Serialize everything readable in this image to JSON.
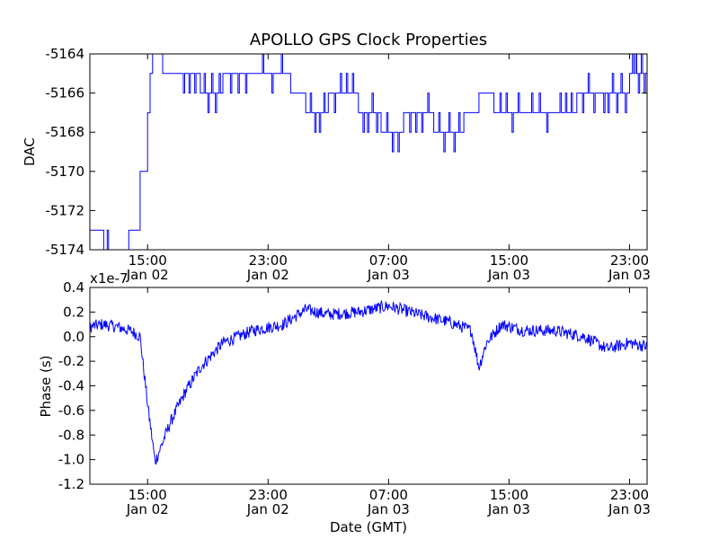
{
  "chart_data": [
    {
      "type": "line",
      "title": "APOLLO GPS Clock Properties",
      "xlabel": "",
      "ylabel": "DAC",
      "ylim": [
        -5174,
        -5164
      ],
      "xlim": [
        "Jan 02 11:10",
        "Jan 04 00:10"
      ],
      "grid": false,
      "color": "#0000ff",
      "y_ticks": [
        "-5164",
        "-5166",
        "-5168",
        "-5170",
        "-5172",
        "-5174"
      ],
      "x_ticks": [
        {
          "time": "15:00",
          "date": "Jan 02"
        },
        {
          "time": "23:00",
          "date": "Jan 02"
        },
        {
          "time": "07:00",
          "date": "Jan 03"
        },
        {
          "time": "15:00",
          "date": "Jan 03"
        },
        {
          "time": "23:00",
          "date": "Jan 03"
        }
      ],
      "series": [
        {
          "x": [
            "Jan 02 11:10",
            "Jan 02 12:00",
            "Jan 02 12:05",
            "Jan 02 13:30",
            "Jan 02 13:45",
            "Jan 02 14:00",
            "Jan 02 14:30",
            "Jan 02 15:00",
            "Jan 02 15:10",
            "Jan 02 15:20",
            "Jan 02 16:00",
            "Jan 02 17:00",
            "Jan 02 18:30",
            "Jan 02 20:00",
            "Jan 02 22:00",
            "Jan 03 00:30",
            "Jan 03 01:30",
            "Jan 03 03:00",
            "Jan 03 05:00",
            "Jan 03 06:30",
            "Jan 03 08:00",
            "Jan 03 10:00",
            "Jan 03 12:00",
            "Jan 03 13:00",
            "Jan 03 14:00",
            "Jan 03 16:00",
            "Jan 03 18:00",
            "Jan 03 19:30",
            "Jan 03 21:00",
            "Jan 03 23:00",
            "Jan 04 00:10"
          ],
          "values": [
            -5173,
            -5173,
            -5174,
            -5174,
            -5173,
            -5173,
            -5170,
            -5167,
            -5165,
            -5164,
            -5165,
            -5165,
            -5166,
            -5165,
            -5165,
            -5166,
            -5167,
            -5166,
            -5167,
            -5168,
            -5167,
            -5168,
            -5167,
            -5166,
            -5167,
            -5167,
            -5167,
            -5166,
            -5166,
            -5165,
            -5166
          ]
        }
      ]
    },
    {
      "type": "line",
      "title": "",
      "xlabel": "Date (GMT)",
      "ylabel": "Phase (s)",
      "y_offset_label": "x1e-7",
      "ylim": [
        -1.2,
        0.4
      ],
      "xlim": [
        "Jan 02 11:10",
        "Jan 04 00:10"
      ],
      "grid": false,
      "color": "#0000ff",
      "y_ticks": [
        "0.4",
        "0.2",
        "0.0",
        "-0.2",
        "-0.4",
        "-0.6",
        "-0.8",
        "-1.0",
        "-1.2"
      ],
      "x_ticks": [
        {
          "time": "15:00",
          "date": "Jan 02"
        },
        {
          "time": "23:00",
          "date": "Jan 02"
        },
        {
          "time": "07:00",
          "date": "Jan 03"
        },
        {
          "time": "15:00",
          "date": "Jan 03"
        },
        {
          "time": "23:00",
          "date": "Jan 03"
        }
      ],
      "series": [
        {
          "x": [
            "Jan 02 11:10",
            "Jan 02 12:00",
            "Jan 02 13:00",
            "Jan 02 14:00",
            "Jan 02 14:30",
            "Jan 02 15:00",
            "Jan 02 15:30",
            "Jan 02 16:30",
            "Jan 02 17:30",
            "Jan 02 18:30",
            "Jan 02 20:00",
            "Jan 02 22:00",
            "Jan 03 00:00",
            "Jan 03 01:30",
            "Jan 03 03:00",
            "Jan 03 05:00",
            "Jan 03 07:00",
            "Jan 03 09:00",
            "Jan 03 11:00",
            "Jan 03 12:30",
            "Jan 03 13:00",
            "Jan 03 13:30",
            "Jan 03 14:30",
            "Jan 03 16:00",
            "Jan 03 18:00",
            "Jan 03 20:00",
            "Jan 03 21:30",
            "Jan 03 23:00",
            "Jan 04 00:10"
          ],
          "values": [
            0.08,
            0.1,
            0.08,
            0.04,
            0.0,
            -0.55,
            -1.02,
            -0.7,
            -0.45,
            -0.25,
            -0.05,
            0.05,
            0.1,
            0.22,
            0.18,
            0.2,
            0.25,
            0.18,
            0.12,
            0.05,
            -0.25,
            -0.05,
            0.1,
            0.05,
            0.05,
            0.0,
            -0.1,
            -0.05,
            -0.08
          ]
        }
      ]
    }
  ]
}
